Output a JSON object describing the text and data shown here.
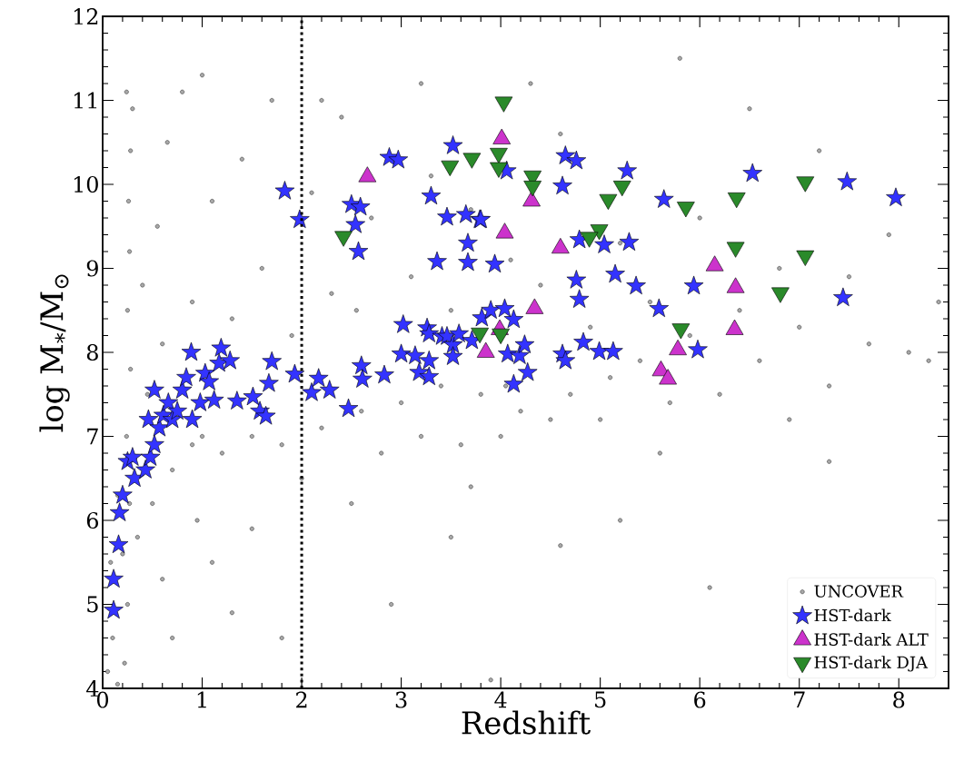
{
  "chart_data": {
    "type": "scatter",
    "xlabel": "Redshift",
    "ylabel": "log M$_{*}$/M$_{⊙}$",
    "xlim": [
      0,
      8.5
    ],
    "ylim": [
      4,
      12
    ],
    "xticks": [
      0,
      1,
      2,
      3,
      4,
      5,
      6,
      7,
      8
    ],
    "yticks": [
      4,
      5,
      6,
      7,
      8,
      9,
      10,
      11,
      12
    ],
    "grid": false,
    "legend": "bottom right",
    "ref_lines": [
      {
        "axis": "x",
        "value": 2,
        "color": "#000000",
        "line_style": "dotted"
      }
    ],
    "series": [
      {
        "name": "UNCOVER",
        "color": "#a8a8a8",
        "marker": "circle",
        "x": [
          0.22,
          0.25,
          0.2,
          0.27,
          0.24,
          0.28,
          0.25,
          0.27,
          0.26,
          0.28,
          0.3,
          0.24,
          0.05,
          0.1,
          0.08,
          0.15,
          0.35,
          0.5,
          0.45,
          0.6,
          0.7,
          0.9,
          0.4,
          0.55,
          0.65,
          0.8,
          0.9,
          1.0,
          1.1,
          1.2,
          1.3,
          1.5,
          1.6,
          1.8,
          1.9,
          1.4,
          1.7,
          1.1,
          1.3,
          0.7,
          2.0,
          2.2,
          2.3,
          2.1,
          2.4,
          2.6,
          2.55,
          2.7,
          2.8,
          3.0,
          3.1,
          3.2,
          3.3,
          3.4,
          3.5,
          3.6,
          3.7,
          3.8,
          4.0,
          4.05,
          4.1,
          4.2,
          4.4,
          4.5,
          4.6,
          4.7,
          4.9,
          5.0,
          5.1,
          5.2,
          5.4,
          5.5,
          5.7,
          5.9,
          6.0,
          6.2,
          6.4,
          6.6,
          6.8,
          7.0,
          7.3,
          7.5,
          7.7,
          7.9,
          8.1,
          8.3,
          7.2,
          6.5,
          5.8,
          4.3,
          1.0,
          1.8,
          2.9,
          3.5,
          4.6,
          5.2,
          6.1,
          7.3,
          3.9,
          0.15,
          0.6,
          0.95,
          1.5,
          2.5,
          3.7,
          5.6,
          6.9,
          8.4,
          3.2,
          2.2
        ],
        "values": [
          4.3,
          5.0,
          5.6,
          6.2,
          7.0,
          7.8,
          8.5,
          9.2,
          9.8,
          10.4,
          10.9,
          11.1,
          4.2,
          4.6,
          5.5,
          6.3,
          5.8,
          6.2,
          7.5,
          8.1,
          6.6,
          6.9,
          8.8,
          9.5,
          10.5,
          11.1,
          8.6,
          7.0,
          9.8,
          6.8,
          8.4,
          7.0,
          9.0,
          6.9,
          8.2,
          10.3,
          11.0,
          5.5,
          4.9,
          4.6,
          6.5,
          7.1,
          8.7,
          9.9,
          10.8,
          7.3,
          8.5,
          9.6,
          6.8,
          7.4,
          8.9,
          7.0,
          10.1,
          7.6,
          8.5,
          6.9,
          9.7,
          7.5,
          7.0,
          7.6,
          9.1,
          7.3,
          8.8,
          7.2,
          10.6,
          7.5,
          8.3,
          7.2,
          7.7,
          9.3,
          7.9,
          8.6,
          7.4,
          8.2,
          9.6,
          7.5,
          8.5,
          7.9,
          9.0,
          8.3,
          7.6,
          8.9,
          8.1,
          9.4,
          8.0,
          7.9,
          10.4,
          10.9,
          11.5,
          11.2,
          11.3,
          4.6,
          5.0,
          5.8,
          5.7,
          6.0,
          5.2,
          6.7,
          4.1,
          4.05,
          5.3,
          6.0,
          5.9,
          6.2,
          6.4,
          6.8,
          7.2,
          8.6,
          11.2,
          11.0
        ]
      },
      {
        "name": "HST-dark",
        "color": "#3333ff",
        "marker": "star",
        "x": [
          0.11,
          0.11,
          0.16,
          0.17,
          0.2,
          0.25,
          0.32,
          0.3,
          0.43,
          0.48,
          0.52,
          0.46,
          0.52,
          0.57,
          0.61,
          0.66,
          0.7,
          0.75,
          0.8,
          0.84,
          0.89,
          0.9,
          0.98,
          1.03,
          1.07,
          1.12,
          1.19,
          1.17,
          1.28,
          1.35,
          1.51,
          1.58,
          1.64,
          1.7,
          1.67,
          1.83,
          1.93,
          1.98,
          2.1,
          2.17,
          2.28,
          2.47,
          2.5,
          2.54,
          2.57,
          2.59,
          2.6,
          2.61,
          2.83,
          2.88,
          2.97,
          3.02,
          3.0,
          3.14,
          3.18,
          3.26,
          3.28,
          3.28,
          3.28,
          3.3,
          3.36,
          3.41,
          3.46,
          3.46,
          3.52,
          3.52,
          3.52,
          3.58,
          3.65,
          3.67,
          3.67,
          3.71,
          3.79,
          3.8,
          3.81,
          3.9,
          3.94,
          4.04,
          4.06,
          4.07,
          4.13,
          4.13,
          4.19,
          4.24,
          4.27,
          4.62,
          4.62,
          4.65,
          4.65,
          4.76,
          4.76,
          4.79,
          4.79,
          4.83,
          4.99,
          5.04,
          5.13,
          5.15,
          5.27,
          5.29,
          5.36,
          5.59,
          5.64,
          5.94,
          5.98,
          6.53,
          7.44,
          7.48,
          7.97
        ],
        "values": [
          4.93,
          5.3,
          5.71,
          6.09,
          6.3,
          6.7,
          6.5,
          6.75,
          6.6,
          6.75,
          6.9,
          7.2,
          7.55,
          7.1,
          7.25,
          7.4,
          7.2,
          7.3,
          7.55,
          7.7,
          8.0,
          7.2,
          7.4,
          7.75,
          7.65,
          7.43,
          8.05,
          7.87,
          7.9,
          7.42,
          7.47,
          7.3,
          7.24,
          7.89,
          7.63,
          9.92,
          7.74,
          9.58,
          7.52,
          7.69,
          7.55,
          7.33,
          9.76,
          9.52,
          9.2,
          9.73,
          7.84,
          7.68,
          7.73,
          10.32,
          10.29,
          8.33,
          7.98,
          7.96,
          7.76,
          8.29,
          8.22,
          7.9,
          7.71,
          9.86,
          9.08,
          8.19,
          8.19,
          9.61,
          10.46,
          8.09,
          7.95,
          8.22,
          9.64,
          9.3,
          9.07,
          8.14,
          9.58,
          9.58,
          8.41,
          8.5,
          9.05,
          8.52,
          10.16,
          7.98,
          8.39,
          7.62,
          7.96,
          8.09,
          7.76,
          9.98,
          7.98,
          10.34,
          7.9,
          10.28,
          8.86,
          9.34,
          8.63,
          8.12,
          8.01,
          9.28,
          8.01,
          8.93,
          10.16,
          9.31,
          8.79,
          8.52,
          9.82,
          8.79,
          8.03,
          10.13,
          8.65,
          10.03,
          9.84
        ]
      },
      {
        "name": "HST-dark ALT",
        "color": "#cc33cc",
        "marker": "triangle",
        "x": [
          2.66,
          4.01,
          4.31,
          4.04,
          4.6,
          6.15,
          6.36,
          6.35,
          4.34,
          3.99,
          3.85,
          5.78,
          5.61,
          5.68
        ],
        "values": [
          10.09,
          10.54,
          9.8,
          9.42,
          9.24,
          9.03,
          8.77,
          8.27,
          8.52,
          8.27,
          8.0,
          8.03,
          7.78,
          7.68
        ]
      },
      {
        "name": "HST-dark DJA",
        "color": "#2a8a2a",
        "marker": "triangle_down",
        "x": [
          2.42,
          3.49,
          3.71,
          3.98,
          3.98,
          4.03,
          4.32,
          4.32,
          5.08,
          5.22,
          5.86,
          6.37,
          7.06,
          4.99,
          4.89,
          6.36,
          7.06,
          6.81,
          5.81,
          3.79,
          4.0
        ],
        "values": [
          9.38,
          10.22,
          10.31,
          10.37,
          10.2,
          10.98,
          10.1,
          9.98,
          9.82,
          9.98,
          9.73,
          9.84,
          10.03,
          9.46,
          9.37,
          9.25,
          9.15,
          8.71,
          8.28,
          8.23,
          8.22
        ]
      }
    ]
  }
}
